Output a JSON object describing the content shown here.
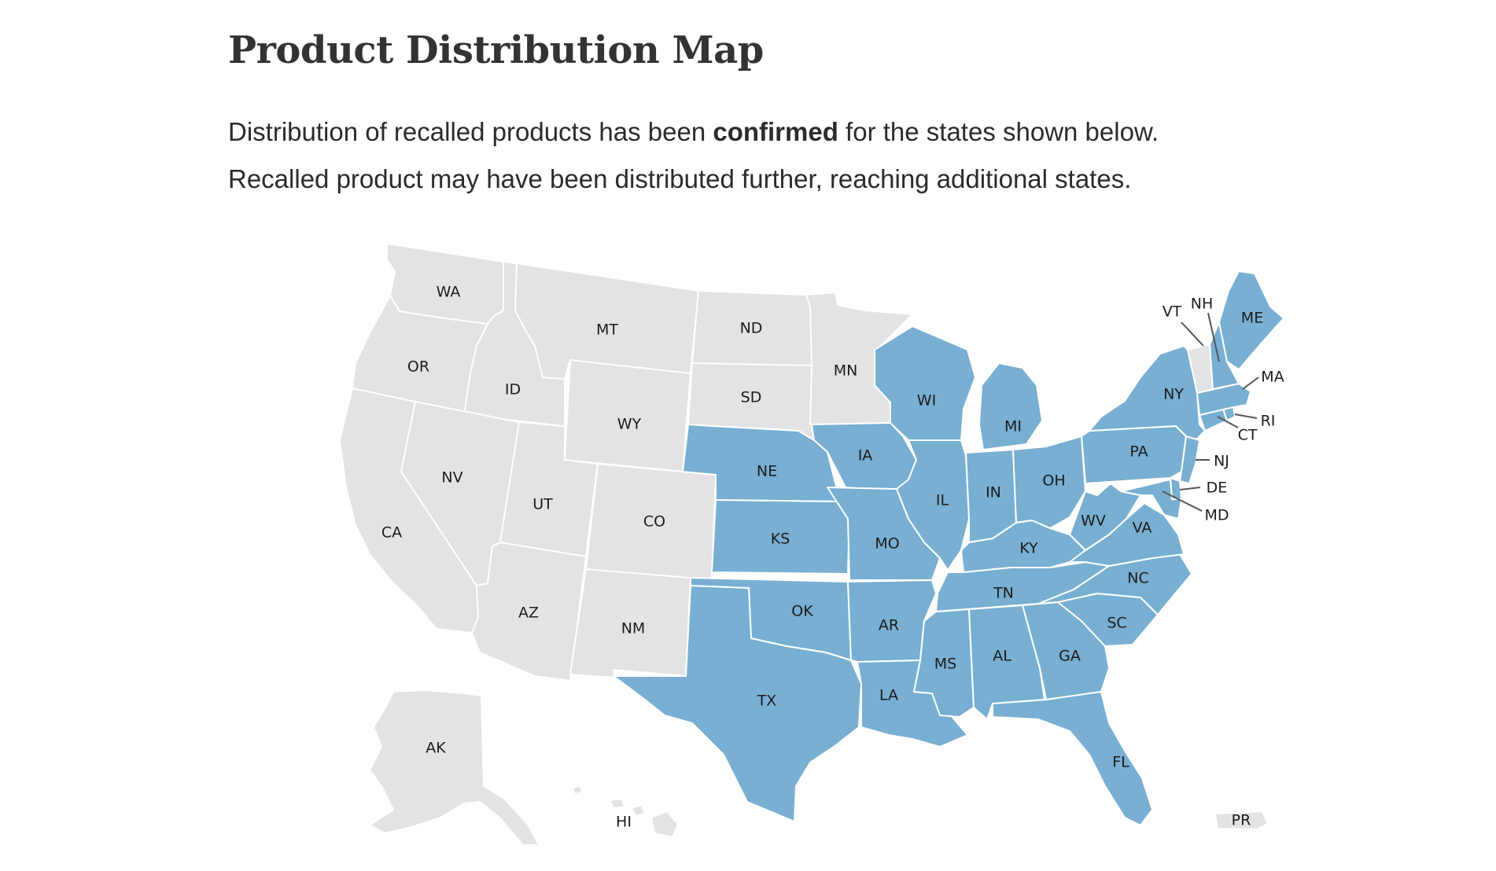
{
  "page": {
    "title": "Product Distribution Map",
    "description_part1": "Distribution of recalled products has been ",
    "description_bold": "confirmed",
    "description_part2": " for the states shown below.",
    "description_line2": "Recalled product may have been distributed further, reaching additional states."
  },
  "colors": {
    "confirmed": "#78afd2",
    "not_confirmed": "#e2e3e5"
  },
  "map": {
    "confirmed_states": [
      "NE",
      "KS",
      "OK",
      "TX",
      "IA",
      "MO",
      "AR",
      "LA",
      "WI",
      "IL",
      "MI",
      "IN",
      "OH",
      "KY",
      "TN",
      "MS",
      "AL",
      "GA",
      "FL",
      "SC",
      "NC",
      "VA",
      "WV",
      "PA",
      "NY",
      "NJ",
      "DE",
      "MD",
      "CT",
      "RI",
      "MA",
      "NH",
      "ME"
    ],
    "states": [
      {
        "code": "WA",
        "status": "not_confirmed"
      },
      {
        "code": "OR",
        "status": "not_confirmed"
      },
      {
        "code": "CA",
        "status": "not_confirmed"
      },
      {
        "code": "ID",
        "status": "not_confirmed"
      },
      {
        "code": "NV",
        "status": "not_confirmed"
      },
      {
        "code": "MT",
        "status": "not_confirmed"
      },
      {
        "code": "WY",
        "status": "not_confirmed"
      },
      {
        "code": "UT",
        "status": "not_confirmed"
      },
      {
        "code": "AZ",
        "status": "not_confirmed"
      },
      {
        "code": "CO",
        "status": "not_confirmed"
      },
      {
        "code": "NM",
        "status": "not_confirmed"
      },
      {
        "code": "ND",
        "status": "not_confirmed"
      },
      {
        "code": "SD",
        "status": "not_confirmed"
      },
      {
        "code": "MN",
        "status": "not_confirmed"
      },
      {
        "code": "VT",
        "status": "not_confirmed"
      },
      {
        "code": "AK",
        "status": "not_confirmed"
      },
      {
        "code": "HI",
        "status": "not_confirmed"
      },
      {
        "code": "PR",
        "status": "not_confirmed"
      },
      {
        "code": "NE",
        "status": "confirmed"
      },
      {
        "code": "KS",
        "status": "confirmed"
      },
      {
        "code": "OK",
        "status": "confirmed"
      },
      {
        "code": "TX",
        "status": "confirmed"
      },
      {
        "code": "IA",
        "status": "confirmed"
      },
      {
        "code": "MO",
        "status": "confirmed"
      },
      {
        "code": "AR",
        "status": "confirmed"
      },
      {
        "code": "LA",
        "status": "confirmed"
      },
      {
        "code": "WI",
        "status": "confirmed"
      },
      {
        "code": "IL",
        "status": "confirmed"
      },
      {
        "code": "MI",
        "status": "confirmed"
      },
      {
        "code": "IN",
        "status": "confirmed"
      },
      {
        "code": "OH",
        "status": "confirmed"
      },
      {
        "code": "KY",
        "status": "confirmed"
      },
      {
        "code": "TN",
        "status": "confirmed"
      },
      {
        "code": "MS",
        "status": "confirmed"
      },
      {
        "code": "AL",
        "status": "confirmed"
      },
      {
        "code": "GA",
        "status": "confirmed"
      },
      {
        "code": "FL",
        "status": "confirmed"
      },
      {
        "code": "SC",
        "status": "confirmed"
      },
      {
        "code": "NC",
        "status": "confirmed"
      },
      {
        "code": "VA",
        "status": "confirmed"
      },
      {
        "code": "WV",
        "status": "confirmed"
      },
      {
        "code": "PA",
        "status": "confirmed"
      },
      {
        "code": "NY",
        "status": "confirmed"
      },
      {
        "code": "NJ",
        "status": "confirmed"
      },
      {
        "code": "DE",
        "status": "confirmed"
      },
      {
        "code": "MD",
        "status": "confirmed"
      },
      {
        "code": "CT",
        "status": "confirmed"
      },
      {
        "code": "RI",
        "status": "confirmed"
      },
      {
        "code": "MA",
        "status": "confirmed"
      },
      {
        "code": "NH",
        "status": "confirmed"
      },
      {
        "code": "ME",
        "status": "confirmed"
      }
    ]
  }
}
